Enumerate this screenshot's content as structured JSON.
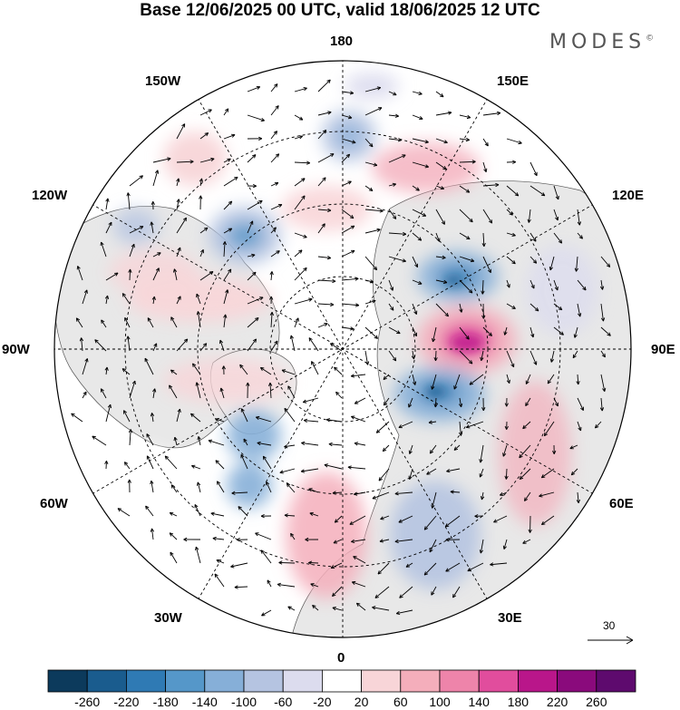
{
  "title": "Base 12/06/2025 00 UTC, valid 18/06/2025 12 UTC",
  "brand": "MODES",
  "brand_mark": "©",
  "longitude_labels": {
    "top": "180",
    "bottom": "0",
    "left": "90W",
    "right": "90E",
    "upper_left_1": "150W",
    "upper_left_2": "120W",
    "upper_right_1": "150E",
    "upper_right_2": "120E",
    "lower_left_1": "60W",
    "lower_left_2": "30W",
    "lower_right_1": "60E",
    "lower_right_2": "30E"
  },
  "wind_scale_label": "30",
  "colorbar": {
    "ticks": [
      "-260",
      "-220",
      "-180",
      "-140",
      "-100",
      "-60",
      "-20",
      "20",
      "60",
      "100",
      "140",
      "180",
      "220",
      "260"
    ],
    "colors": [
      "#0c3a5c",
      "#1a5c8e",
      "#2f7ab4",
      "#5597c9",
      "#86afd8",
      "#b5c4e1",
      "#dcdcee",
      "#ffffff",
      "#f8d5d8",
      "#f4aebb",
      "#ee84aa",
      "#e14d9d",
      "#b9168a",
      "#8a0a7c",
      "#5e0a6e"
    ]
  },
  "colors": {
    "background": "#ffffff",
    "land_grey": "#e8e8e8",
    "map_outline": "#000000"
  }
}
